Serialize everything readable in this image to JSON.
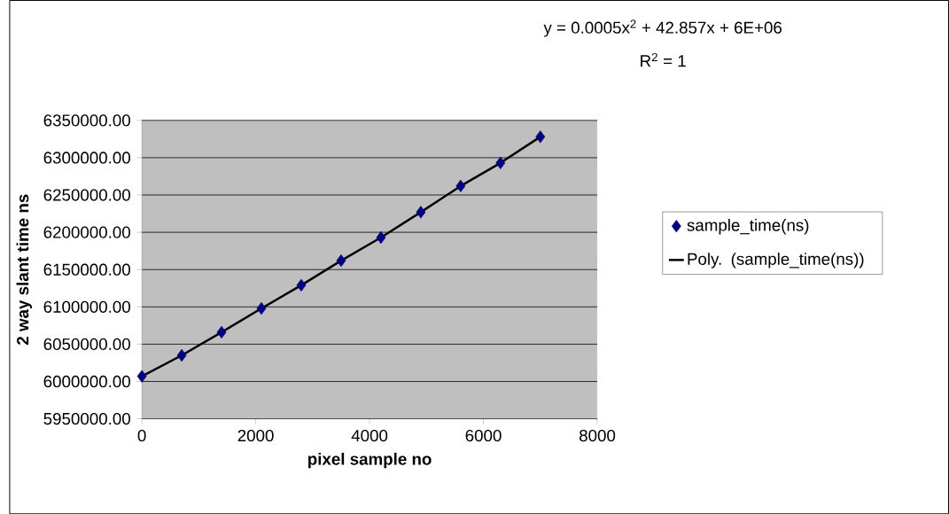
{
  "chart_data": {
    "type": "scatter",
    "xlabel": "pixel sample no",
    "ylabel": "2 way slant time ns",
    "annotations": [
      "y = 0.0005x$^{2}$ + 42.857x + 6E+06",
      "R$^{2}$ = 1"
    ],
    "series": [
      {
        "name": "sample_time(ns)",
        "color": "#000080",
        "marker": "diamond",
        "x": [
          0,
          700,
          1400,
          2100,
          2800,
          3500,
          4200,
          4900,
          5600,
          6300,
          7000
        ],
        "values": [
          6007000,
          6035000,
          6066000,
          6098000,
          6129000,
          6162000,
          6193000,
          6227000,
          6262000,
          6293000,
          6328000
        ]
      },
      {
        "name": "Poly. (sample_time(ns))",
        "type": "line",
        "color": "#000000",
        "marker": "none",
        "line_style": "solid",
        "x": [
          0,
          700,
          1400,
          2100,
          2800,
          3500,
          4200,
          4900,
          5600,
          6300,
          7000
        ],
        "values": [
          6007000,
          6035000,
          6066000,
          6098000,
          6129000,
          6162000,
          6193000,
          6227000,
          6262000,
          6293000,
          6328000
        ]
      }
    ],
    "xlim": [
      0,
      8000
    ],
    "xticks": [
      0,
      2000,
      4000,
      6000,
      8000
    ],
    "ylim": [
      5950000,
      6350000
    ],
    "yticks": [
      {
        "value": 5950000,
        "label": "5950000.00"
      },
      {
        "value": 6000000,
        "label": "6000000.00"
      },
      {
        "value": 6050000,
        "label": "6050000.00"
      },
      {
        "value": 6100000,
        "label": "6100000.00"
      },
      {
        "value": 6150000,
        "label": "6150000.00"
      },
      {
        "value": 6200000,
        "label": "6200000.00"
      },
      {
        "value": 6250000,
        "label": "6250000.00"
      },
      {
        "value": 6300000,
        "label": "6300000.00"
      },
      {
        "value": 6350000,
        "label": "6350000.00"
      }
    ],
    "grid": "y",
    "legend": "right"
  }
}
